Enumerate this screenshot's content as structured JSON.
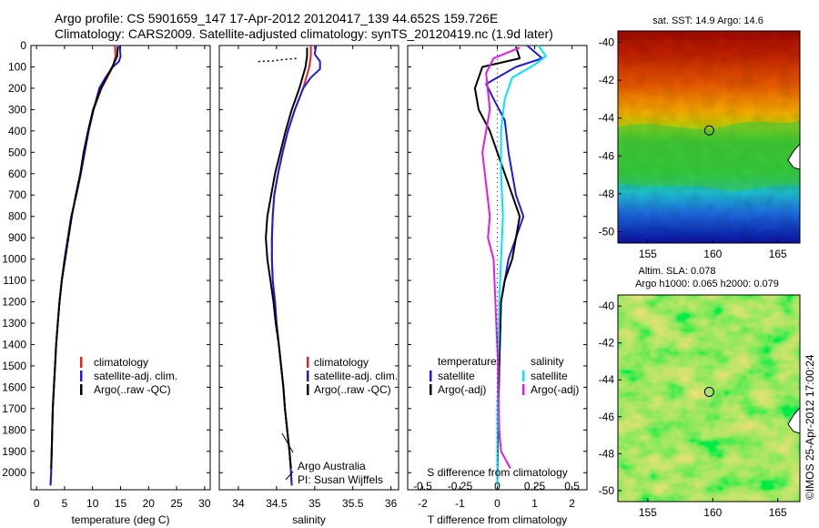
{
  "header": {
    "line1": "Argo profile: CS 5901659_147 17-Apr-2012 20120417_139 44.652S 159.726E",
    "line2": "Climatology: CARS2009. Satellite-adjusted climatology: synTS_20120419.nc (1.9d later)"
  },
  "colors": {
    "climatology": "#e8231f",
    "satellite": "#1a1ae6",
    "argo": "#000000",
    "satellite_salinity": "#00e5ff",
    "argo_salinity": "#e619e6"
  },
  "chart_data": [
    {
      "type": "line",
      "panel": "temperature",
      "xlabel": "temperature (deg C)",
      "xlim": [
        -1,
        31
      ],
      "xticks": [
        0,
        5,
        10,
        15,
        20,
        25,
        30
      ],
      "ylim": [
        2080,
        0
      ],
      "yticks": [
        0,
        100,
        200,
        300,
        400,
        500,
        600,
        700,
        800,
        900,
        1000,
        1100,
        1200,
        1300,
        1400,
        1500,
        1600,
        1700,
        1800,
        1900,
        2000
      ],
      "legend": [
        "climatology",
        "satellite-adj. clim.",
        "Argo(..raw -QC)"
      ],
      "series": [
        {
          "name": "climatology",
          "color": "#e8231f",
          "points": [
            [
              14.0,
              0
            ],
            [
              14.1,
              50
            ],
            [
              13.6,
              100
            ],
            [
              11.6,
              200
            ],
            [
              10.2,
              300
            ],
            [
              9.3,
              400
            ],
            [
              8.6,
              500
            ],
            [
              7.9,
              600
            ],
            [
              7.1,
              700
            ],
            [
              6.2,
              800
            ],
            [
              5.6,
              900
            ],
            [
              5.0,
              1000
            ],
            [
              4.5,
              1100
            ],
            [
              4.1,
              1200
            ],
            [
              3.8,
              1300
            ],
            [
              3.5,
              1400
            ],
            [
              3.3,
              1500
            ],
            [
              3.1,
              1600
            ],
            [
              2.9,
              1700
            ],
            [
              2.8,
              1800
            ],
            [
              2.7,
              1900
            ],
            [
              2.6,
              2000
            ],
            [
              2.5,
              2060
            ]
          ]
        },
        {
          "name": "satellite-adj. clim.",
          "color": "#1a1ae6",
          "points": [
            [
              14.8,
              0
            ],
            [
              15.0,
              50
            ],
            [
              14.7,
              75
            ],
            [
              13.6,
              100
            ],
            [
              12.3,
              150
            ],
            [
              11.2,
              200
            ],
            [
              10.2,
              300
            ],
            [
              9.3,
              400
            ],
            [
              8.6,
              500
            ],
            [
              7.9,
              600
            ],
            [
              7.1,
              700
            ],
            [
              6.2,
              800
            ],
            [
              5.6,
              900
            ],
            [
              5.0,
              1000
            ],
            [
              4.5,
              1100
            ],
            [
              4.1,
              1200
            ],
            [
              3.8,
              1300
            ],
            [
              3.5,
              1400
            ],
            [
              3.3,
              1500
            ],
            [
              3.1,
              1600
            ],
            [
              2.9,
              1700
            ],
            [
              2.8,
              1800
            ],
            [
              2.7,
              1900
            ],
            [
              2.6,
              2000
            ],
            [
              2.5,
              2060
            ]
          ]
        },
        {
          "name": "Argo(..raw -QC)",
          "color": "#000000",
          "points": [
            [
              14.5,
              5
            ],
            [
              14.4,
              50
            ],
            [
              13.5,
              100
            ],
            [
              11.5,
              200
            ],
            [
              10.1,
              300
            ],
            [
              9.2,
              400
            ],
            [
              8.4,
              500
            ],
            [
              7.8,
              600
            ],
            [
              7.0,
              700
            ],
            [
              6.3,
              800
            ],
            [
              5.7,
              900
            ],
            [
              5.1,
              1000
            ],
            [
              4.5,
              1100
            ],
            [
              4.1,
              1200
            ],
            [
              3.8,
              1300
            ],
            [
              3.5,
              1400
            ],
            [
              3.3,
              1500
            ],
            [
              3.1,
              1600
            ],
            [
              2.9,
              1700
            ],
            [
              2.8,
              1800
            ],
            [
              2.7,
              1900
            ],
            [
              2.6,
              1980
            ]
          ]
        }
      ]
    },
    {
      "type": "line",
      "panel": "salinity",
      "xlabel": "salinity",
      "xlim": [
        33.75,
        36.1
      ],
      "xticks": [
        34,
        34.5,
        35,
        35.5,
        36
      ],
      "xtick_labels": [
        "34",
        "34.5",
        "35",
        "35.5",
        "36"
      ],
      "ylim": [
        2080,
        0
      ],
      "legend": [
        "climatology",
        "satellite-adj. clim.",
        "Argo(..raw -QC)"
      ],
      "annotation": [
        "Argo Australia",
        "PI: Susan Wijffels"
      ],
      "series": [
        {
          "name": "climatology",
          "color": "#e8231f",
          "points": [
            [
              34.95,
              0
            ],
            [
              34.95,
              50
            ],
            [
              34.93,
              100
            ],
            [
              34.85,
              200
            ],
            [
              34.74,
              300
            ],
            [
              34.65,
              400
            ],
            [
              34.58,
              500
            ],
            [
              34.52,
              600
            ],
            [
              34.47,
              700
            ],
            [
              34.45,
              800
            ],
            [
              34.44,
              900
            ],
            [
              34.44,
              1000
            ],
            [
              34.45,
              1100
            ],
            [
              34.48,
              1200
            ],
            [
              34.5,
              1300
            ],
            [
              34.53,
              1400
            ],
            [
              34.56,
              1500
            ],
            [
              34.59,
              1600
            ],
            [
              34.61,
              1700
            ],
            [
              34.64,
              1800
            ],
            [
              34.67,
              1900
            ],
            [
              34.69,
              2000
            ],
            [
              34.7,
              2060
            ]
          ]
        },
        {
          "name": "satellite-adj. clim.",
          "color": "#1a1ae6",
          "points": [
            [
              35.02,
              0
            ],
            [
              35.0,
              40
            ],
            [
              35.07,
              75
            ],
            [
              35.07,
              110
            ],
            [
              34.95,
              150
            ],
            [
              34.85,
              200
            ],
            [
              34.74,
              300
            ],
            [
              34.65,
              400
            ],
            [
              34.58,
              500
            ],
            [
              34.52,
              600
            ],
            [
              34.47,
              700
            ],
            [
              34.45,
              800
            ],
            [
              34.44,
              900
            ],
            [
              34.44,
              1000
            ],
            [
              34.45,
              1100
            ],
            [
              34.48,
              1200
            ],
            [
              34.5,
              1300
            ],
            [
              34.53,
              1400
            ],
            [
              34.56,
              1500
            ],
            [
              34.59,
              1600
            ],
            [
              34.61,
              1700
            ],
            [
              34.64,
              1800
            ],
            [
              34.67,
              1900
            ],
            [
              34.69,
              2000
            ],
            [
              34.7,
              2060
            ]
          ]
        },
        {
          "name": "Argo(..raw -QC)",
          "color": "#000000",
          "points": [
            [
              34.9,
              10
            ],
            [
              34.9,
              50
            ],
            [
              34.88,
              100
            ],
            [
              34.8,
              200
            ],
            [
              34.7,
              300
            ],
            [
              34.62,
              400
            ],
            [
              34.55,
              500
            ],
            [
              34.48,
              600
            ],
            [
              34.43,
              700
            ],
            [
              34.38,
              800
            ],
            [
              34.36,
              900
            ],
            [
              34.38,
              1000
            ],
            [
              34.42,
              1100
            ],
            [
              34.46,
              1200
            ],
            [
              34.49,
              1300
            ],
            [
              34.53,
              1400
            ],
            [
              34.56,
              1500
            ],
            [
              34.59,
              1600
            ],
            [
              34.61,
              1700
            ],
            [
              34.64,
              1800
            ],
            [
              34.67,
              1900
            ],
            [
              34.69,
              1980
            ]
          ]
        },
        {
          "name": "Argo surface samples",
          "color": "#000000",
          "dotted": true,
          "points": [
            [
              34.26,
              75
            ],
            [
              34.45,
              72
            ],
            [
              34.6,
              65
            ],
            [
              34.78,
              60
            ]
          ]
        }
      ]
    },
    {
      "type": "line",
      "panel": "difference",
      "xlabel": "T difference from climatology",
      "xlabel2": "S difference from climatology",
      "xlim": [
        -2.4,
        2.4
      ],
      "xticks": [
        -2,
        -1,
        0,
        1,
        2
      ],
      "xtick_labels": [
        "-2",
        "-1",
        "0",
        "1",
        "2"
      ],
      "sticks": [
        -0.5,
        -0.25,
        0,
        0.25,
        0.5
      ],
      "stick_labels": [
        "-0.5",
        "-0.25",
        "0",
        "0.25",
        "0.5"
      ],
      "ylim": [
        2080,
        0
      ],
      "legend_temperature_title": "temperature",
      "legend_salinity_title": "salinity",
      "legend_temperature": [
        "satellite",
        "Argo(-adj)"
      ],
      "legend_salinity": [
        "satellite",
        "Argo(-adj)"
      ],
      "series": [
        {
          "name": "T satellite",
          "color": "#1a1ae6",
          "points": [
            [
              0.8,
              0
            ],
            [
              1.2,
              60
            ],
            [
              0.5,
              100
            ],
            [
              -0.3,
              180
            ],
            [
              -0.1,
              250
            ],
            [
              0.2,
              350
            ],
            [
              0.3,
              500
            ],
            [
              0.5,
              700
            ],
            [
              0.7,
              800
            ],
            [
              0.5,
              900
            ],
            [
              0.3,
              1000
            ],
            [
              0.1,
              1200
            ],
            [
              0.05,
              1500
            ],
            [
              0.02,
              1800
            ],
            [
              0.0,
              2060
            ]
          ]
        },
        {
          "name": "T Argo(-adj)",
          "color": "#000000",
          "points": [
            [
              0.5,
              5
            ],
            [
              0.6,
              60
            ],
            [
              -0.4,
              100
            ],
            [
              -0.6,
              200
            ],
            [
              -0.5,
              300
            ],
            [
              -0.2,
              400
            ],
            [
              0.0,
              500
            ],
            [
              0.4,
              700
            ],
            [
              0.6,
              800
            ],
            [
              0.5,
              900
            ],
            [
              0.4,
              1000
            ],
            [
              0.2,
              1100
            ],
            [
              0.1,
              1200
            ],
            [
              0.05,
              1500
            ],
            [
              0.02,
              1800
            ],
            [
              0.0,
              1980
            ]
          ]
        },
        {
          "name": "S satellite",
          "color": "#00e5ff",
          "points": [
            [
              1.1,
              0
            ],
            [
              1.3,
              50
            ],
            [
              1.0,
              90
            ],
            [
              0.4,
              150
            ],
            [
              0.2,
              250
            ],
            [
              0.1,
              400
            ],
            [
              0.1,
              600
            ],
            [
              0.15,
              800
            ],
            [
              0.1,
              1000
            ],
            [
              0.05,
              1200
            ],
            [
              0.02,
              1500
            ],
            [
              0.0,
              1700
            ],
            [
              0.0,
              1900
            ],
            [
              0.0,
              2060
            ]
          ]
        },
        {
          "name": "S Argo(-adj)",
          "color": "#e619e6",
          "points": [
            [
              0.6,
              10
            ],
            [
              -0.1,
              60
            ],
            [
              -0.3,
              130
            ],
            [
              -0.2,
              300
            ],
            [
              -0.4,
              500
            ],
            [
              -0.3,
              650
            ],
            [
              -0.2,
              800
            ],
            [
              -0.25,
              900
            ],
            [
              -0.1,
              1000
            ],
            [
              -0.05,
              1200
            ],
            [
              0.02,
              1500
            ],
            [
              0.05,
              1800
            ],
            [
              0.1,
              1900
            ],
            [
              0.35,
              1980
            ]
          ]
        }
      ]
    }
  ],
  "maps": {
    "sst": {
      "title": "sat. SST: 14.9 Argo: 14.6",
      "lon_ticks": [
        155,
        160,
        165
      ],
      "lat_ticks": [
        -40,
        -42,
        -44,
        -46,
        -48,
        -50
      ],
      "lon_range": [
        152.7,
        166.7
      ],
      "lat_range": [
        -39.4,
        -50.6
      ],
      "argo_marker": {
        "lon": 159.726,
        "lat": -44.652
      }
    },
    "sla": {
      "title_line1": "Altim. SLA: 0.078",
      "title_line2": "Argo h1000: 0.065 h2000: 0.079",
      "lon_ticks": [
        155,
        160,
        165
      ],
      "lat_ticks": [
        -40,
        -42,
        -44,
        -46,
        -48,
        -50
      ],
      "lon_range": [
        152.7,
        166.7
      ],
      "lat_range": [
        -39.4,
        -50.6
      ],
      "argo_marker": {
        "lon": 159.726,
        "lat": -44.652
      }
    }
  },
  "footer": {
    "stamp": "©IMOS 25-Apr-2012 17:00:24"
  }
}
